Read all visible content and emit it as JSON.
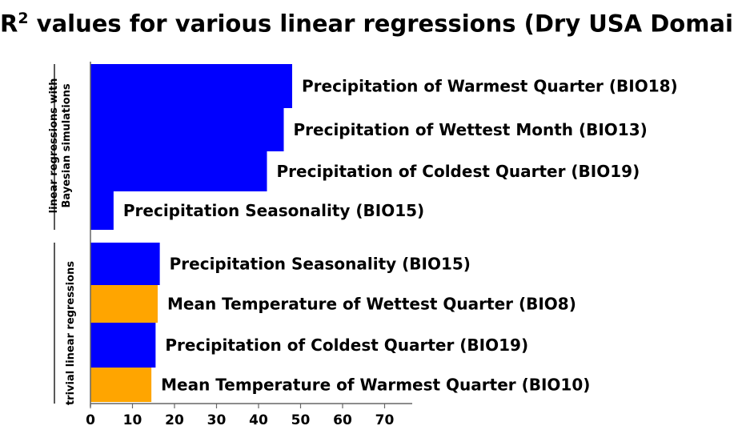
{
  "chart_data": {
    "type": "bar",
    "orientation": "horizontal",
    "title_main": "R",
    "title_sup": "2",
    "title_rest": " values for various linear regressions (Dry USA Domain)",
    "xlim": [
      0,
      75
    ],
    "xticks": [
      "0",
      "10",
      "20",
      "30",
      "40",
      "50",
      "60",
      "70"
    ],
    "xtick_values": [
      0,
      10,
      20,
      30,
      40,
      50,
      60,
      70
    ],
    "groups": [
      {
        "label_line1": "linear regressions with",
        "label_line2": "Bayesian simulations"
      },
      {
        "label_line1": "trivial linear regressions",
        "label_line2": ""
      }
    ],
    "bars": [
      {
        "label": "Precipitation of Warmest Quarter (BIO18)",
        "value": 48,
        "group": 0,
        "color": "#0000ff"
      },
      {
        "label": "Precipitation of Wettest Month (BIO13)",
        "value": 46,
        "group": 0,
        "color": "#0000ff"
      },
      {
        "label": "Precipitation of Coldest Quarter (BIO19)",
        "value": 42,
        "group": 0,
        "color": "#0000ff"
      },
      {
        "label": "Precipitation Seasonality (BIO15)",
        "value": 5.5,
        "group": 0,
        "color": "#0000ff"
      },
      {
        "label": "Precipitation Seasonality (BIO15)",
        "value": 16.5,
        "group": 1,
        "color": "#0000ff"
      },
      {
        "label": "Mean Temperature of Wettest Quarter (BIO8)",
        "value": 16,
        "group": 1,
        "color": "#ffa500"
      },
      {
        "label": "Precipitation of Coldest Quarter (BIO19)",
        "value": 15.5,
        "group": 1,
        "color": "#0000ff"
      },
      {
        "label": "Mean Temperature of Warmest Quarter (BIO10)",
        "value": 14.5,
        "group": 1,
        "color": "#ffa500"
      }
    ]
  }
}
